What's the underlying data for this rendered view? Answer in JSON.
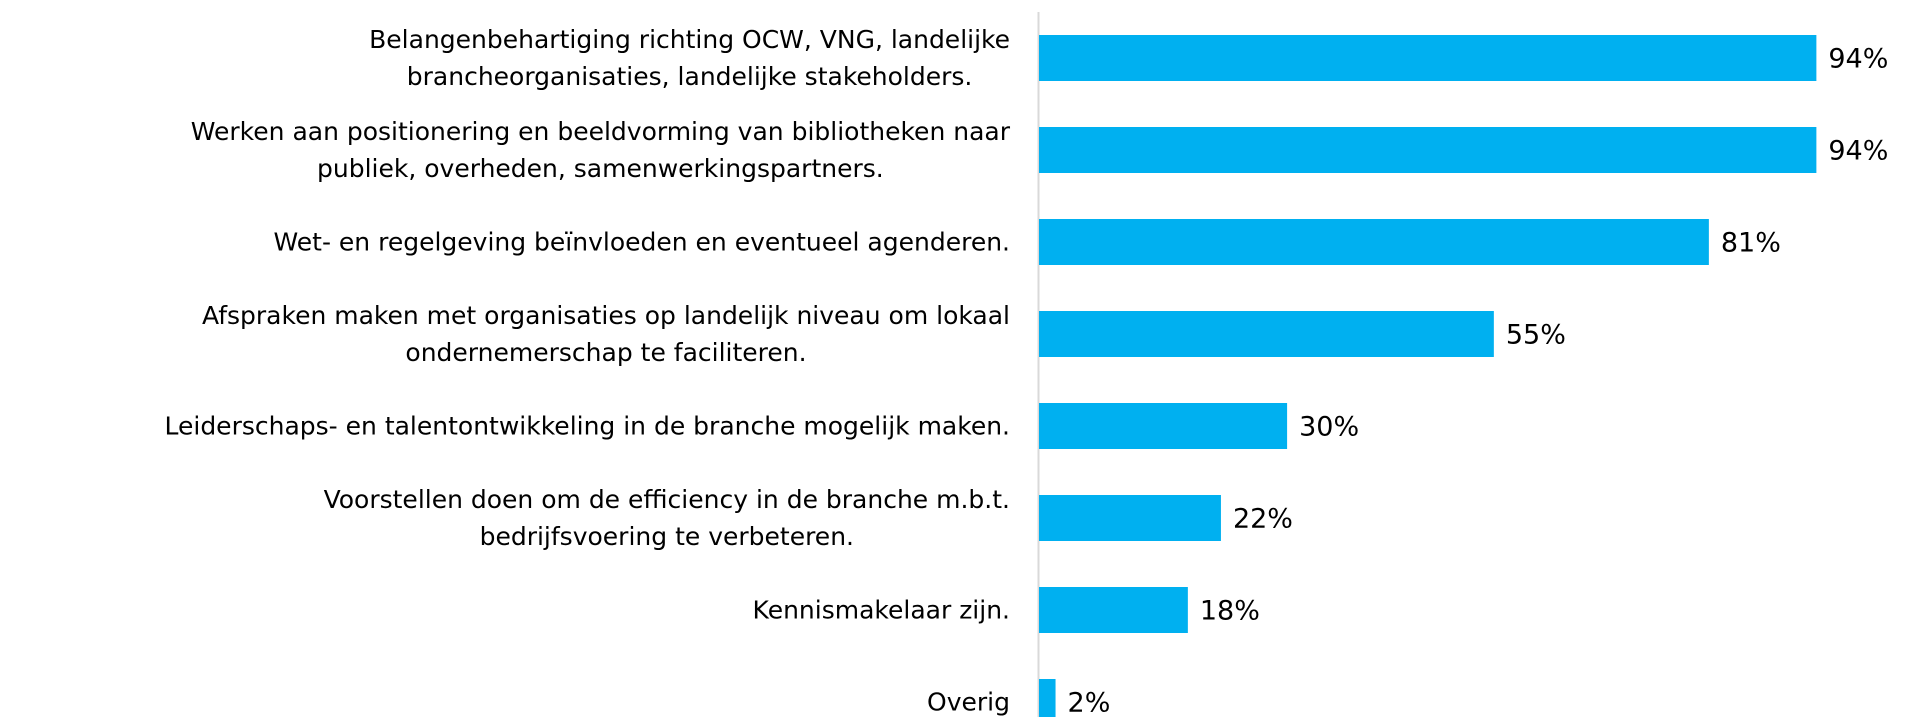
{
  "chart_data": {
    "type": "barh",
    "categories": [
      "Belangenbehartiging richting OCW, VNG, landelijke\nbrancheorganisaties, landelijke stakeholders.",
      "Werken aan positionering en beeldvorming van bibliotheken naar\npubliek, overheden, samenwerkingspartners.",
      "Wet- en regelgeving beïnvloeden en eventueel agenderen.",
      "Afspraken maken met organisaties op landelijk niveau om lokaal\nondernemerschap te faciliteren.",
      "Leiderschaps- en talentontwikkeling in de branche mogelijk maken.",
      "Voorstellen doen om de efficiency in de branche m.b.t.\nbedrijfsvoering te verbeteren.",
      "Kennismakelaar zijn.",
      "Overig"
    ],
    "values": [
      94,
      94,
      81,
      55,
      30,
      22,
      18,
      2
    ],
    "value_labels": [
      "94%",
      "94%",
      "81%",
      "55%",
      "30%",
      "22%",
      "18%",
      "2%"
    ],
    "color": "#00b0f0",
    "xlim": [
      0,
      100
    ]
  }
}
